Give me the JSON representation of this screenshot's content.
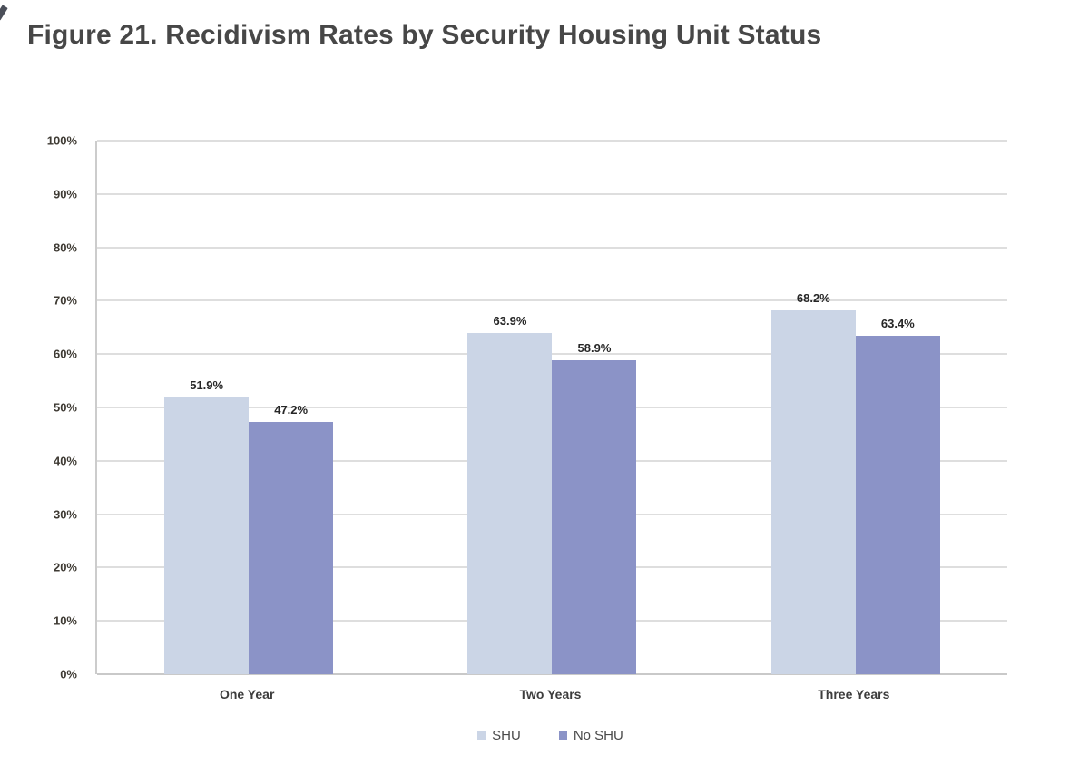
{
  "figure": {
    "title": "Figure 21.  Recidivism Rates by Security Housing Unit Status"
  },
  "chart_data": {
    "type": "bar",
    "title": "Figure 21.  Recidivism Rates by Security Housing Unit Status",
    "categories": [
      "One Year",
      "Two Years",
      "Three Years"
    ],
    "series": [
      {
        "name": "SHU",
        "color": "#cbd5e6",
        "values": [
          51.9,
          63.9,
          68.2
        ],
        "data_labels": [
          "51.9%",
          "63.9%",
          "68.2%"
        ]
      },
      {
        "name": "No SHU",
        "color": "#8b93c7",
        "values": [
          47.2,
          58.9,
          63.4
        ],
        "data_labels": [
          "47.2%",
          "58.9%",
          "63.4%"
        ]
      }
    ],
    "xlabel": "",
    "ylabel": "",
    "ylim": [
      0,
      100
    ],
    "yticks": [
      "0%",
      "10%",
      "20%",
      "30%",
      "40%",
      "50%",
      "60%",
      "70%",
      "80%",
      "90%",
      "100%"
    ],
    "grid": true,
    "legend_position": "bottom"
  },
  "colors": {
    "gridline": "#dedede",
    "baseline": "#c9c9c9",
    "tick_text": "#3e3a33",
    "title_text": "#474747"
  }
}
